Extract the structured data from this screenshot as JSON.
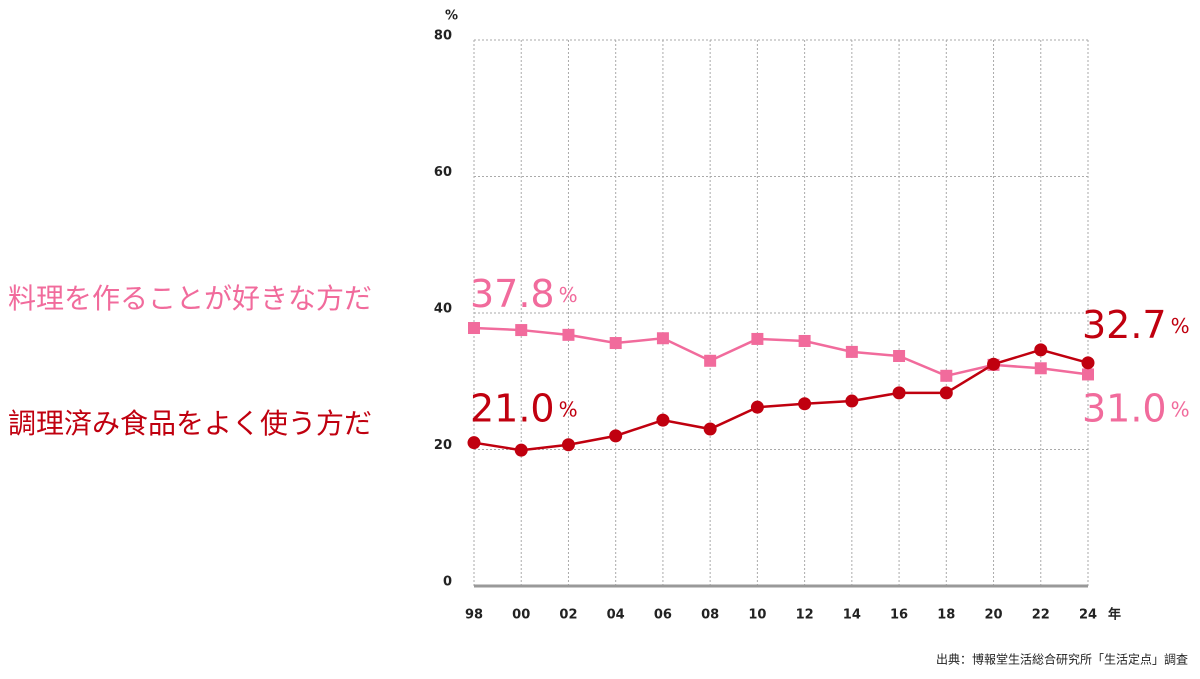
{
  "chart_data": {
    "type": "line",
    "y_unit": "%",
    "x_unit": "年",
    "label_unit": "%",
    "source": "出典：博報堂生活総合研究所「生活定点」調査",
    "categories": [
      "98",
      "00",
      "02",
      "04",
      "06",
      "08",
      "10",
      "12",
      "14",
      "16",
      "18",
      "20",
      "22",
      "24"
    ],
    "ylim": [
      0,
      80
    ],
    "yticks": [
      0,
      20,
      40,
      60,
      80
    ],
    "grid": true,
    "series": [
      {
        "name": "料理を作ることが好きな方だ",
        "color": "#f16b9c",
        "marker": "square",
        "values": [
          37.8,
          37.5,
          36.8,
          35.6,
          36.3,
          33.0,
          36.2,
          35.9,
          34.3,
          33.7,
          30.8,
          32.4,
          31.9,
          31.0
        ],
        "value_labels": [
          "37.8",
          null,
          null,
          null,
          null,
          null,
          null,
          null,
          null,
          null,
          null,
          null,
          null,
          "31.0"
        ]
      },
      {
        "name": "調理済み食品をよく使う方だ",
        "color": "#c0000f",
        "marker": "circle",
        "values": [
          21.0,
          19.9,
          20.7,
          22.0,
          24.3,
          23.0,
          26.2,
          26.7,
          27.1,
          28.3,
          28.3,
          32.5,
          34.6,
          32.7
        ],
        "value_labels": [
          "21.0",
          null,
          null,
          null,
          null,
          null,
          null,
          null,
          null,
          null,
          null,
          null,
          null,
          "32.7"
        ]
      }
    ]
  }
}
